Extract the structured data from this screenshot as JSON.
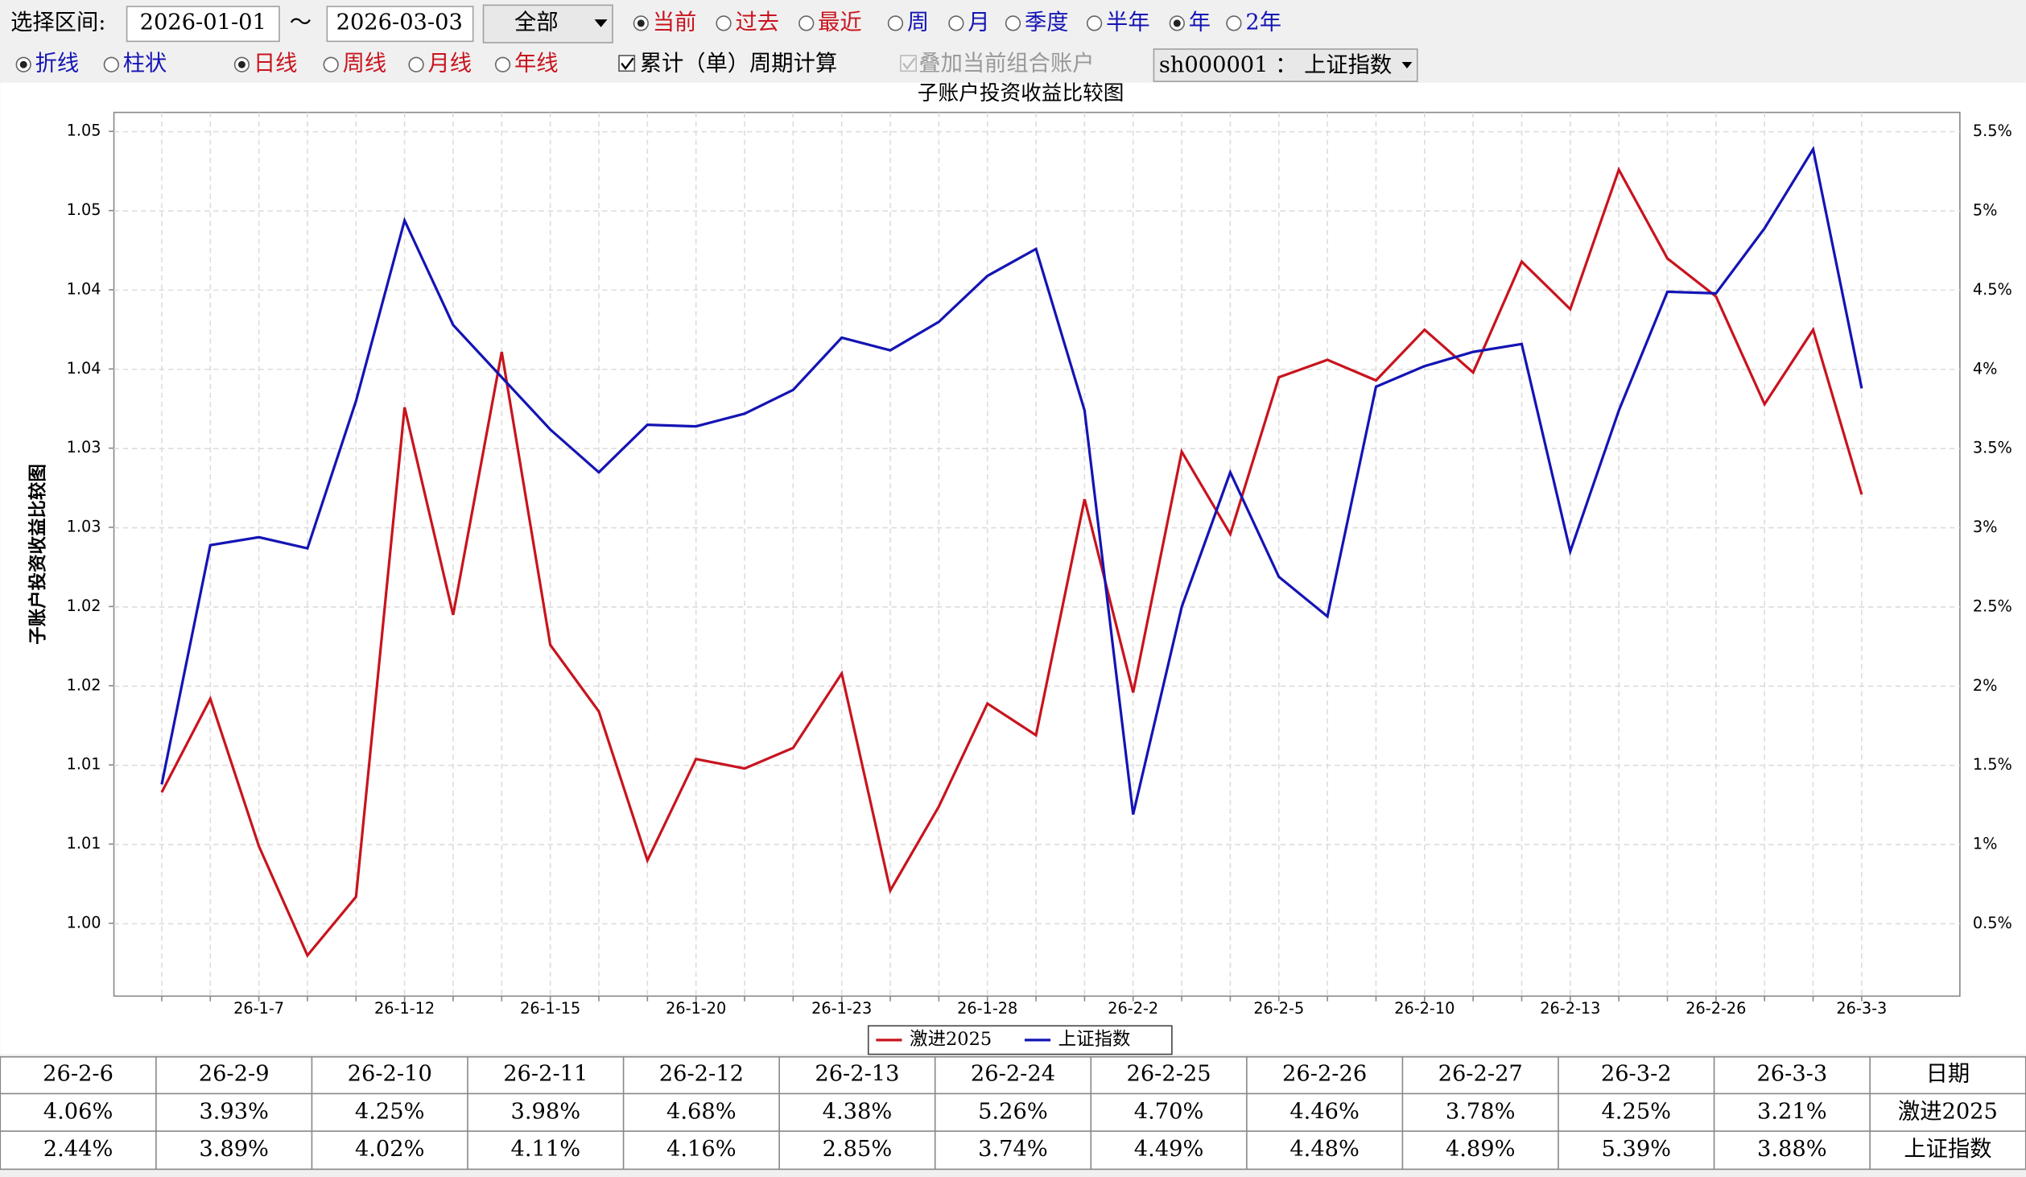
{
  "controls": {
    "range_label": "选择区间:",
    "start": "2026-01-01",
    "tilde": "～",
    "end": "2026-03-03",
    "scope_select": "全部",
    "mode_radios": [
      "当前",
      "过去",
      "最近"
    ],
    "period_radios": [
      "周",
      "月",
      "季度",
      "半年",
      "年",
      "2年"
    ],
    "chart_radios": [
      "折线",
      "柱状"
    ],
    "line_radios": [
      "日线",
      "周线",
      "月线",
      "年线"
    ],
    "cumulative": "累计（单）周期计算",
    "overlay": "叠加当前组合账户",
    "index_select": "sh000001 ： 上证指数"
  },
  "chart_data": {
    "type": "line",
    "title": "子账户投资收益比较图",
    "y_label": "子账户投资收益比较图",
    "categories": [
      null,
      null,
      "26-1-7",
      null,
      null,
      "26-1-12",
      null,
      null,
      "26-1-15",
      null,
      null,
      "26-1-20",
      null,
      null,
      "26-1-23",
      null,
      null,
      "26-1-28",
      null,
      null,
      "26-2-2",
      null,
      null,
      "26-2-5",
      null,
      null,
      "26-2-10",
      null,
      null,
      "26-2-13",
      null,
      null,
      "26-2-26",
      null,
      null,
      "26-3-3"
    ],
    "series": [
      {
        "name": "激进2025",
        "color": "#c8141e",
        "axis": "y2",
        "values": [
          1.33,
          1.92,
          0.99,
          0.3,
          0.67,
          3.76,
          2.45,
          4.11,
          2.26,
          1.84,
          0.9,
          1.54,
          1.48,
          1.61,
          2.08,
          0.71,
          1.24,
          1.89,
          1.69,
          3.18,
          1.96,
          3.48,
          2.96,
          3.95,
          4.06,
          3.93,
          4.25,
          3.98,
          4.68,
          4.38,
          5.26,
          4.7,
          4.46,
          3.78,
          4.25,
          3.21
        ]
      },
      {
        "name": "上证指数",
        "color": "#1414b4",
        "axis": "y2",
        "values": [
          1.38,
          2.89,
          2.94,
          2.87,
          3.8,
          4.94,
          4.28,
          3.95,
          3.62,
          3.35,
          3.65,
          3.64,
          3.72,
          3.87,
          4.2,
          4.12,
          4.3,
          4.59,
          4.76,
          3.74,
          1.19,
          2.5,
          3.35,
          2.69,
          2.44,
          3.89,
          4.02,
          4.11,
          4.16,
          2.85,
          3.74,
          4.49,
          4.48,
          4.89,
          5.39,
          3.88
        ]
      }
    ],
    "ylim": [
      1.0004,
      1.0562
    ],
    "yticks": [
      {
        "value": 1.005,
        "label": "1.00"
      },
      {
        "value": 1.01,
        "label": "1.01"
      },
      {
        "value": 1.015,
        "label": "1.01"
      },
      {
        "value": 1.02,
        "label": "1.02"
      },
      {
        "value": 1.025,
        "label": "1.02"
      },
      {
        "value": 1.03,
        "label": "1.03"
      },
      {
        "value": 1.035,
        "label": "1.03"
      },
      {
        "value": 1.04,
        "label": "1.04"
      },
      {
        "value": 1.045,
        "label": "1.04"
      },
      {
        "value": 1.05,
        "label": "1.05"
      },
      {
        "value": 1.055,
        "label": "1.05"
      }
    ],
    "y2lim": [
      0.043,
      5.622
    ],
    "y2ticks": [
      {
        "value": 0.5,
        "label": "0.5%"
      },
      {
        "value": 1,
        "label": "1%"
      },
      {
        "value": 1.5,
        "label": "1.5%"
      },
      {
        "value": 2,
        "label": "2%"
      },
      {
        "value": 2.5,
        "label": "2.5%"
      },
      {
        "value": 3,
        "label": "3%"
      },
      {
        "value": 3.5,
        "label": "3.5%"
      },
      {
        "value": 4,
        "label": "4%"
      },
      {
        "value": 4.5,
        "label": "4.5%"
      },
      {
        "value": 5,
        "label": "5%"
      },
      {
        "value": 5.5,
        "label": "5.5%"
      }
    ],
    "grid": true,
    "legend": "bottom"
  },
  "table": {
    "header": [
      "26-2-6",
      "26-2-9",
      "26-2-10",
      "26-2-11",
      "26-2-12",
      "26-2-13",
      "26-2-24",
      "26-2-25",
      "26-2-26",
      "26-2-27",
      "26-3-2",
      "26-3-3",
      "日期"
    ],
    "rows": [
      [
        "4.06%",
        "3.93%",
        "4.25%",
        "3.98%",
        "4.68%",
        "4.38%",
        "5.26%",
        "4.70%",
        "4.46%",
        "3.78%",
        "4.25%",
        "3.21%",
        "激进2025"
      ],
      [
        "2.44%",
        "3.89%",
        "4.02%",
        "4.11%",
        "4.16%",
        "2.85%",
        "3.74%",
        "4.49%",
        "4.48%",
        "4.89%",
        "5.39%",
        "3.88%",
        "上证指数"
      ]
    ]
  }
}
